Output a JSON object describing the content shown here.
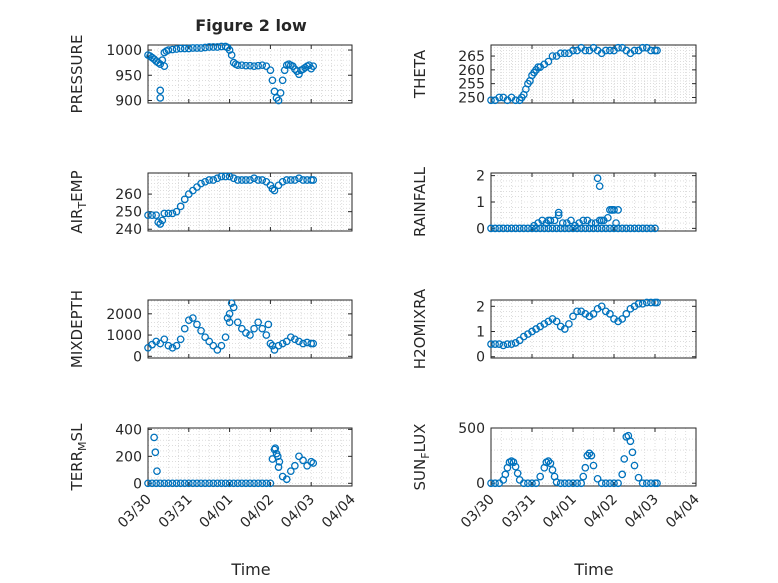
{
  "figure": {
    "title": "Figure 2 low",
    "xlabel": "Time"
  },
  "colors": {
    "marker": "#0072BD",
    "axis": "#262626",
    "grid": "#c8c8c8"
  },
  "chart_data": [
    {
      "type": "scatter",
      "ylabel": "PRESSURE",
      "ylabel_sub": "",
      "xlim": [
        "03/30",
        "04/04"
      ],
      "ylim": [
        895,
        1010
      ],
      "xticks": [
        "03/30",
        "03/31",
        "04/01",
        "04/02",
        "04/03",
        "04/04"
      ],
      "yticks": [
        900,
        950,
        1000
      ],
      "grid": true,
      "x": [
        0.0,
        0.05,
        0.1,
        0.15,
        0.2,
        0.25,
        0.3,
        0.35,
        0.4,
        0.45,
        0.5,
        0.6,
        0.7,
        0.8,
        0.9,
        1.0,
        1.1,
        1.2,
        1.3,
        1.4,
        1.5,
        1.6,
        1.7,
        1.8,
        1.9,
        1.95,
        2.0,
        2.05,
        2.1,
        2.15,
        2.2,
        2.3,
        2.4,
        2.5,
        2.6,
        2.7,
        2.8,
        2.9,
        3.0,
        3.05,
        3.1,
        3.15,
        3.2,
        3.25,
        3.3,
        3.35,
        3.4,
        3.45,
        3.5,
        3.55,
        3.6,
        3.65,
        3.7,
        3.75,
        3.8,
        3.85,
        3.9,
        3.95,
        4.0,
        4.05,
        0.3,
        0.3,
        0.4
      ],
      "y": [
        990,
        988,
        985,
        982,
        978,
        975,
        972,
        980,
        995,
        998,
        1000,
        1001,
        1002,
        1003,
        1003,
        1003,
        1004,
        1004,
        1004,
        1005,
        1006,
        1006,
        1006,
        1007,
        1007,
        1005,
        1000,
        990,
        975,
        972,
        970,
        970,
        969,
        969,
        968,
        969,
        970,
        968,
        960,
        940,
        918,
        905,
        900,
        915,
        940,
        960,
        970,
        972,
        970,
        968,
        962,
        958,
        952,
        960,
        962,
        965,
        968,
        970,
        963,
        968,
        920,
        905,
        968
      ]
    },
    {
      "type": "scatter",
      "ylabel": "THETA",
      "ylabel_sub": "",
      "xlim": [
        "03/30",
        "04/04"
      ],
      "ylim": [
        248,
        269
      ],
      "xticks": [
        "03/30",
        "03/31",
        "04/01",
        "04/02",
        "04/03",
        "04/04"
      ],
      "yticks": [
        250,
        255,
        260,
        265
      ],
      "grid": true,
      "x": [
        0.0,
        0.1,
        0.2,
        0.3,
        0.4,
        0.5,
        0.6,
        0.7,
        0.75,
        0.8,
        0.85,
        0.9,
        0.95,
        1.0,
        1.05,
        1.1,
        1.15,
        1.2,
        1.3,
        1.4,
        1.5,
        1.6,
        1.7,
        1.8,
        1.9,
        2.0,
        2.1,
        2.2,
        2.3,
        2.4,
        2.5,
        2.6,
        2.7,
        2.8,
        2.9,
        3.0,
        3.1,
        3.2,
        3.3,
        3.4,
        3.5,
        3.6,
        3.7,
        3.8,
        3.9,
        4.0,
        4.05
      ],
      "y": [
        249,
        249,
        250,
        250,
        249,
        250,
        249,
        249,
        250,
        251,
        253,
        255,
        256,
        258,
        259,
        260,
        261,
        261,
        262,
        263,
        265,
        265,
        266,
        266,
        266,
        267,
        267,
        268,
        267,
        267,
        268,
        267,
        266,
        267,
        267,
        267,
        268,
        268,
        267,
        266,
        267,
        267,
        268,
        268,
        267,
        267,
        267
      ]
    },
    {
      "type": "scatter",
      "ylabel": "AIR",
      "ylabel_sub": "T",
      "ylabel_after": "EMP",
      "xlim": [
        "03/30",
        "04/04"
      ],
      "ylim": [
        239,
        272
      ],
      "xticks": [
        "03/30",
        "03/31",
        "04/01",
        "04/02",
        "04/03",
        "04/04"
      ],
      "yticks": [
        240,
        250,
        260
      ],
      "grid": true,
      "x": [
        0.0,
        0.1,
        0.2,
        0.25,
        0.3,
        0.35,
        0.4,
        0.5,
        0.6,
        0.7,
        0.8,
        0.9,
        1.0,
        1.1,
        1.2,
        1.3,
        1.4,
        1.5,
        1.6,
        1.7,
        1.8,
        1.9,
        2.0,
        2.1,
        2.2,
        2.3,
        2.4,
        2.5,
        2.6,
        2.7,
        2.8,
        2.9,
        3.0,
        3.05,
        3.1,
        3.2,
        3.3,
        3.4,
        3.5,
        3.6,
        3.7,
        3.8,
        3.9,
        4.0,
        4.05
      ],
      "y": [
        248,
        248,
        248,
        244,
        243,
        245,
        249,
        249,
        249,
        250,
        253,
        257,
        260,
        262,
        264,
        266,
        267,
        268,
        268,
        269,
        270,
        270,
        270,
        269,
        268,
        268,
        268,
        268,
        269,
        268,
        268,
        267,
        265,
        263,
        262,
        265,
        267,
        268,
        268,
        268,
        269,
        268,
        268,
        268,
        268
      ]
    },
    {
      "type": "scatter",
      "ylabel": "RAINFALL",
      "ylabel_sub": "",
      "xlim": [
        "03/30",
        "04/04"
      ],
      "ylim": [
        -0.1,
        2.1
      ],
      "xticks": [
        "03/30",
        "03/31",
        "04/01",
        "04/02",
        "04/03",
        "04/04"
      ],
      "yticks": [
        0,
        1,
        2
      ],
      "grid": true,
      "x": [
        0.0,
        0.1,
        0.2,
        0.3,
        0.4,
        0.5,
        0.6,
        0.7,
        0.8,
        0.9,
        1.0,
        1.1,
        1.2,
        1.3,
        1.4,
        1.5,
        1.6,
        1.7,
        1.8,
        1.9,
        2.0,
        2.1,
        2.2,
        2.3,
        2.4,
        2.5,
        2.6,
        2.7,
        2.8,
        2.9,
        3.0,
        3.1,
        3.2,
        3.3,
        3.4,
        3.5,
        3.6,
        3.7,
        3.8,
        3.9,
        4.0,
        1.05,
        1.15,
        1.25,
        1.35,
        1.45,
        1.55,
        1.65,
        1.75,
        1.85,
        1.95,
        2.05,
        2.15,
        2.25,
        2.35,
        2.45,
        2.55,
        2.65,
        2.75,
        2.85,
        2.95,
        3.05,
        2.6,
        2.65,
        2.7,
        1.65,
        1.4,
        2.9,
        2.95,
        3.0,
        3.1
      ],
      "y": [
        0,
        0,
        0,
        0,
        0,
        0,
        0,
        0,
        0,
        0,
        0,
        0,
        0,
        0,
        0,
        0,
        0,
        0,
        0,
        0,
        0,
        0,
        0,
        0,
        0,
        0,
        0,
        0,
        0,
        0,
        0,
        0,
        0,
        0,
        0,
        0,
        0,
        0,
        0,
        0,
        0,
        0.1,
        0.2,
        0.3,
        0.2,
        0.3,
        0.3,
        0.5,
        0.2,
        0.2,
        0.3,
        0.1,
        0.2,
        0.3,
        0.3,
        0.2,
        0.2,
        0.3,
        0.3,
        0.4,
        0.7,
        0.2,
        1.9,
        1.6,
        0.3,
        0.6,
        0.3,
        0.7,
        0.7,
        0.7,
        0.7
      ]
    },
    {
      "type": "scatter",
      "ylabel": "MIXDEPTH",
      "ylabel_sub": "",
      "xlim": [
        "03/30",
        "04/04"
      ],
      "ylim": [
        -80,
        2650
      ],
      "xticks": [
        "03/30",
        "03/31",
        "04/01",
        "04/02",
        "04/03",
        "04/04"
      ],
      "yticks": [
        0,
        1000,
        2000
      ],
      "grid": true,
      "x": [
        0.0,
        0.1,
        0.2,
        0.3,
        0.4,
        0.5,
        0.6,
        0.7,
        0.8,
        0.9,
        1.0,
        1.1,
        1.2,
        1.3,
        1.4,
        1.5,
        1.6,
        1.7,
        1.8,
        1.9,
        2.0,
        2.05,
        2.1,
        2.2,
        2.3,
        2.4,
        2.5,
        2.6,
        2.7,
        2.8,
        2.9,
        3.0,
        3.05,
        3.1,
        3.2,
        3.3,
        3.4,
        3.5,
        3.6,
        3.7,
        3.8,
        3.9,
        4.0,
        4.05,
        1.95,
        2.0,
        2.95
      ],
      "y": [
        400,
        550,
        700,
        600,
        800,
        500,
        400,
        500,
        800,
        1300,
        1700,
        1800,
        1500,
        1200,
        900,
        700,
        500,
        300,
        500,
        900,
        1600,
        2500,
        2300,
        1600,
        1300,
        1100,
        1000,
        1300,
        1600,
        1300,
        1000,
        600,
        500,
        300,
        500,
        600,
        700,
        900,
        800,
        700,
        600,
        650,
        600,
        600,
        1800,
        2000,
        1500
      ]
    },
    {
      "type": "scatter",
      "ylabel": "H2OMIXRA",
      "ylabel_sub": "",
      "xlim": [
        "03/30",
        "04/04"
      ],
      "ylim": [
        -0.05,
        2.25
      ],
      "xticks": [
        "03/30",
        "03/31",
        "04/01",
        "04/02",
        "04/03",
        "04/04"
      ],
      "yticks": [
        0,
        1,
        2
      ],
      "grid": true,
      "x": [
        0.0,
        0.1,
        0.2,
        0.3,
        0.4,
        0.5,
        0.6,
        0.7,
        0.8,
        0.9,
        1.0,
        1.1,
        1.2,
        1.3,
        1.4,
        1.5,
        1.6,
        1.7,
        1.8,
        1.9,
        2.0,
        2.1,
        2.2,
        2.3,
        2.4,
        2.5,
        2.6,
        2.7,
        2.8,
        2.9,
        3.0,
        3.1,
        3.2,
        3.3,
        3.4,
        3.5,
        3.6,
        3.7,
        3.8,
        3.9,
        4.0,
        4.05
      ],
      "y": [
        0.5,
        0.5,
        0.5,
        0.45,
        0.5,
        0.5,
        0.55,
        0.65,
        0.8,
        0.9,
        1.0,
        1.1,
        1.2,
        1.3,
        1.4,
        1.5,
        1.4,
        1.2,
        1.1,
        1.3,
        1.6,
        1.8,
        1.8,
        1.7,
        1.6,
        1.7,
        1.9,
        2.0,
        1.8,
        1.7,
        1.5,
        1.4,
        1.5,
        1.7,
        1.9,
        2.0,
        2.1,
        2.1,
        2.15,
        2.15,
        2.15,
        2.15
      ]
    },
    {
      "type": "scatter",
      "ylabel": "TERR",
      "ylabel_sub": "M",
      "ylabel_after": "SL",
      "xlim": [
        "03/30",
        "04/04"
      ],
      "ylim": [
        -20,
        410
      ],
      "xticks": [
        "03/30",
        "03/31",
        "04/01",
        "04/02",
        "04/03",
        "04/04"
      ],
      "yticks": [
        0,
        200,
        400
      ],
      "grid": true,
      "x": [
        0.0,
        0.1,
        0.2,
        0.3,
        0.4,
        0.5,
        0.6,
        0.7,
        0.8,
        0.9,
        1.0,
        1.1,
        1.2,
        1.3,
        1.4,
        1.5,
        1.6,
        1.7,
        1.8,
        1.9,
        2.0,
        2.1,
        2.2,
        2.3,
        2.4,
        2.5,
        2.6,
        2.7,
        2.8,
        2.9,
        3.0,
        3.05,
        3.1,
        3.15,
        3.2,
        3.3,
        3.4,
        3.5,
        3.6,
        3.7,
        3.8,
        3.9,
        4.0,
        4.05,
        0.15,
        0.18,
        0.22,
        3.12,
        3.18,
        3.22
      ],
      "y": [
        0,
        0,
        0,
        0,
        0,
        0,
        0,
        0,
        0,
        0,
        0,
        0,
        0,
        0,
        0,
        0,
        0,
        0,
        0,
        0,
        0,
        0,
        0,
        0,
        0,
        0,
        0,
        0,
        0,
        0,
        0,
        180,
        250,
        220,
        120,
        50,
        30,
        90,
        130,
        200,
        170,
        130,
        160,
        150,
        340,
        230,
        90,
        260,
        200,
        160
      ]
    },
    {
      "type": "scatter",
      "ylabel": "SUN",
      "ylabel_sub": "F",
      "ylabel_after": "LUX",
      "xlim": [
        "03/30",
        "04/04"
      ],
      "ylim": [
        -25,
        500
      ],
      "xticks": [
        "03/30",
        "03/31",
        "04/01",
        "04/02",
        "04/03",
        "04/04"
      ],
      "yticks": [
        0,
        500
      ],
      "grid": true,
      "x": [
        0.0,
        0.1,
        0.2,
        0.3,
        0.35,
        0.4,
        0.45,
        0.5,
        0.55,
        0.6,
        0.65,
        0.7,
        0.8,
        0.9,
        1.0,
        1.1,
        1.2,
        1.3,
        1.35,
        1.4,
        1.45,
        1.5,
        1.55,
        1.6,
        1.7,
        1.8,
        1.9,
        2.0,
        2.1,
        2.2,
        2.25,
        2.3,
        2.35,
        2.4,
        2.45,
        2.5,
        2.6,
        2.7,
        2.8,
        2.9,
        3.0,
        3.1,
        3.2,
        3.25,
        3.3,
        3.35,
        3.4,
        3.45,
        3.5,
        3.6,
        3.7,
        3.8,
        3.9,
        4.0,
        4.05
      ],
      "y": [
        0,
        0,
        0,
        30,
        80,
        140,
        190,
        200,
        190,
        150,
        90,
        30,
        0,
        0,
        0,
        0,
        60,
        140,
        190,
        200,
        180,
        120,
        60,
        10,
        0,
        0,
        0,
        0,
        0,
        0,
        60,
        140,
        250,
        270,
        250,
        160,
        40,
        0,
        0,
        0,
        0,
        0,
        80,
        220,
        420,
        430,
        380,
        280,
        160,
        50,
        0,
        0,
        0,
        0,
        0
      ]
    }
  ]
}
